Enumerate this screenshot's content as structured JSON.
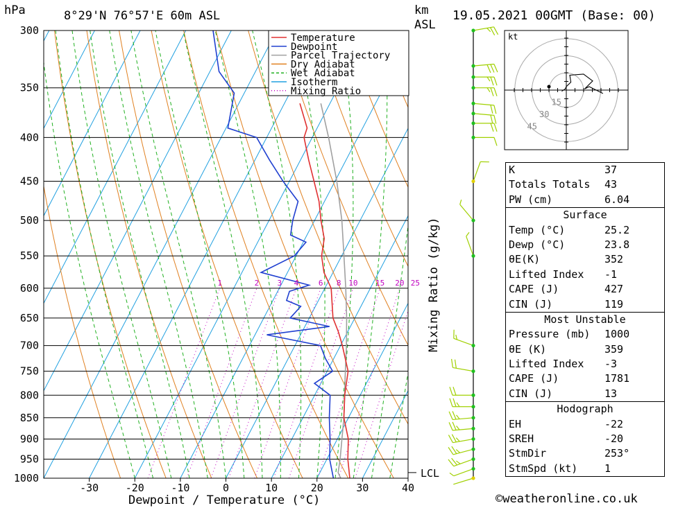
{
  "header": {
    "hpa_label": "hPa",
    "location": "8°29'N  76°57'E  60m  ASL",
    "km_label": "km",
    "asl_label": "ASL",
    "datetime": "19.05.2021  00GMT  (Base: 00)"
  },
  "legend": [
    {
      "label": "Temperature",
      "color": "#e03030",
      "style": "solid"
    },
    {
      "label": "Dewpoint",
      "color": "#2040d0",
      "style": "solid"
    },
    {
      "label": "Parcel Trajectory",
      "color": "#a0a0a0",
      "style": "solid"
    },
    {
      "label": "Dry Adiabat",
      "color": "#e08020",
      "style": "solid"
    },
    {
      "label": "Wet Adiabat",
      "color": "#20b020",
      "style": "dashed"
    },
    {
      "label": "Isotherm",
      "color": "#20a0e0",
      "style": "solid"
    },
    {
      "label": "Mixing Ratio",
      "color": "#c000c0",
      "style": "dotted"
    }
  ],
  "chart_data": {
    "type": "line",
    "subtype": "skew-t log-p",
    "xlabel": "Dewpoint / Temperature (°C)",
    "ylabel": "hPa",
    "secondary_ylabel": "Mixing Ratio (g/kg)",
    "x_ticks": [
      "-30",
      "-20",
      "-10",
      "0",
      "10",
      "20",
      "30",
      "40"
    ],
    "x_tick_values": [
      -30,
      -20,
      -10,
      0,
      10,
      20,
      30,
      40
    ],
    "pressure_levels": [
      300,
      350,
      400,
      450,
      500,
      550,
      600,
      650,
      700,
      750,
      800,
      850,
      900,
      950,
      1000
    ],
    "xlim": [
      -40,
      40
    ],
    "ylim": [
      1000,
      300
    ],
    "grid": true,
    "lcl_label": "LCL",
    "lcl_pressure": 985,
    "mixing_ratio_labels": [
      "1",
      "2",
      "3",
      "4",
      "6",
      "8",
      "10",
      "15",
      "20",
      "25"
    ],
    "mixing_ratio_values": [
      1,
      2,
      3,
      4,
      6,
      8,
      10,
      15,
      20,
      25
    ],
    "series": [
      {
        "name": "Temperature",
        "color": "#e03030",
        "points": [
          [
            1000,
            27.2
          ],
          [
            950,
            24.6
          ],
          [
            900,
            22.4
          ],
          [
            850,
            19.0
          ],
          [
            800,
            16.6
          ],
          [
            750,
            14.6
          ],
          [
            700,
            10.4
          ],
          [
            675,
            8.0
          ],
          [
            650,
            5.2
          ],
          [
            600,
            1.4
          ],
          [
            575,
            -2.0
          ],
          [
            550,
            -4.4
          ],
          [
            525,
            -5.8
          ],
          [
            500,
            -8.6
          ],
          [
            475,
            -11.2
          ],
          [
            450,
            -14.6
          ],
          [
            425,
            -18.2
          ],
          [
            400,
            -21.8
          ],
          [
            390,
            -22.2
          ],
          [
            365,
            -26.6
          ]
        ]
      },
      {
        "name": "Dewpoint",
        "color": "#2040d0",
        "points": [
          [
            1000,
            23.6
          ],
          [
            950,
            20.6
          ],
          [
            900,
            18.4
          ],
          [
            850,
            15.8
          ],
          [
            800,
            13.4
          ],
          [
            775,
            8.6
          ],
          [
            750,
            11.2
          ],
          [
            725,
            8.2
          ],
          [
            700,
            5.6
          ],
          [
            680,
            -7.4
          ],
          [
            665,
            5.4
          ],
          [
            650,
            -4.2
          ],
          [
            630,
            -3.2
          ],
          [
            620,
            -7.0
          ],
          [
            605,
            -7.4
          ],
          [
            595,
            -3.8
          ],
          [
            575,
            -15.8
          ],
          [
            550,
            -10.4
          ],
          [
            530,
            -9.4
          ],
          [
            520,
            -13.6
          ],
          [
            500,
            -14.8
          ],
          [
            475,
            -15.8
          ],
          [
            450,
            -21.4
          ],
          [
            425,
            -26.8
          ],
          [
            400,
            -32.2
          ],
          [
            390,
            -39.6
          ],
          [
            355,
            -42.2
          ],
          [
            335,
            -48.0
          ],
          [
            300,
            -54.0
          ]
        ]
      },
      {
        "name": "Parcel Trajectory",
        "color": "#a0a0a0",
        "points": [
          [
            1000,
            25.2
          ],
          [
            985,
            24.0
          ],
          [
            950,
            22.9
          ],
          [
            900,
            21.0
          ],
          [
            850,
            19.0
          ],
          [
            800,
            16.6
          ],
          [
            750,
            14.0
          ],
          [
            700,
            11.3
          ],
          [
            650,
            8.2
          ],
          [
            600,
            4.6
          ],
          [
            550,
            0.5
          ],
          [
            500,
            -4.0
          ],
          [
            450,
            -9.6
          ],
          [
            400,
            -16.4
          ],
          [
            365,
            -22.0
          ]
        ]
      }
    ]
  },
  "wind_profile": [
    {
      "p": 1000,
      "dir": 253,
      "kt": 1
    },
    {
      "p": 975,
      "dir": 250,
      "kt": 5
    },
    {
      "p": 950,
      "dir": 250,
      "kt": 25
    },
    {
      "p": 925,
      "dir": 255,
      "kt": 25
    },
    {
      "p": 900,
      "dir": 260,
      "kt": 25
    },
    {
      "p": 875,
      "dir": 265,
      "kt": 25
    },
    {
      "p": 850,
      "dir": 265,
      "kt": 25
    },
    {
      "p": 825,
      "dir": 270,
      "kt": 25
    },
    {
      "p": 800,
      "dir": 270,
      "kt": 20
    },
    {
      "p": 750,
      "dir": 280,
      "kt": 20
    },
    {
      "p": 700,
      "dir": 290,
      "kt": 15
    },
    {
      "p": 550,
      "dir": 340,
      "kt": 5
    },
    {
      "p": 500,
      "dir": 320,
      "kt": 5
    },
    {
      "p": 450,
      "dir": 20,
      "kt": 10
    },
    {
      "p": 400,
      "dir": 90,
      "kt": 10
    },
    {
      "p": 385,
      "dir": 90,
      "kt": 20
    },
    {
      "p": 375,
      "dir": 95,
      "kt": 20
    },
    {
      "p": 365,
      "dir": 95,
      "kt": 20
    },
    {
      "p": 350,
      "dir": 90,
      "kt": 25
    },
    {
      "p": 340,
      "dir": 90,
      "kt": 25
    },
    {
      "p": 330,
      "dir": 85,
      "kt": 30
    },
    {
      "p": 300,
      "dir": 80,
      "kt": 25
    }
  ],
  "hodograph": {
    "unit_label": "kt",
    "ring_labels": [
      "15",
      "30",
      "45"
    ],
    "ring_values": [
      15,
      30,
      45
    ],
    "trace": [
      [
        -4,
        1
      ],
      [
        -1,
        -1
      ],
      [
        0,
        -3
      ],
      [
        4,
        -7
      ],
      [
        3,
        -13
      ],
      [
        15,
        -14
      ],
      [
        23,
        -8
      ],
      [
        16,
        -1
      ],
      [
        20,
        -3
      ],
      [
        32,
        3
      ]
    ]
  },
  "indices": {
    "general": [
      {
        "key": "K",
        "value": "37"
      },
      {
        "key": "Totals Totals",
        "value": "43"
      },
      {
        "key": "PW (cm)",
        "value": "6.04"
      }
    ],
    "surface_title": "Surface",
    "surface": [
      {
        "key": "Temp (°C)",
        "value": "25.2"
      },
      {
        "key": "Dewp (°C)",
        "value": "23.8"
      },
      {
        "key": "θE(K)",
        "value": "352"
      },
      {
        "key": "Lifted Index",
        "value": "-1"
      },
      {
        "key": "CAPE (J)",
        "value": "427"
      },
      {
        "key": "CIN (J)",
        "value": "119"
      }
    ],
    "mu_title": "Most Unstable",
    "mu": [
      {
        "key": "Pressure (mb)",
        "value": "1000"
      },
      {
        "key": "θE (K)",
        "value": "359"
      },
      {
        "key": "Lifted Index",
        "value": "-3"
      },
      {
        "key": "CAPE (J)",
        "value": "1781"
      },
      {
        "key": "CIN (J)",
        "value": "13"
      }
    ],
    "hodo_title": "Hodograph",
    "hodo": [
      {
        "key": "EH",
        "value": "-22"
      },
      {
        "key": "SREH",
        "value": "-20"
      },
      {
        "key": "StmDir",
        "value": "253°"
      },
      {
        "key": "StmSpd (kt)",
        "value": "1"
      }
    ]
  },
  "credit": "©weatheronline.co.uk",
  "colors": {
    "temperature": "#e03030",
    "dewpoint": "#2040d0",
    "parcel": "#a0a0a0",
    "dry_adiabat": "#e08020",
    "wet_adiabat": "#20b020",
    "isotherm": "#20a0e0",
    "mixing_ratio": "#c000c0",
    "wind_dots": "#20c020"
  }
}
